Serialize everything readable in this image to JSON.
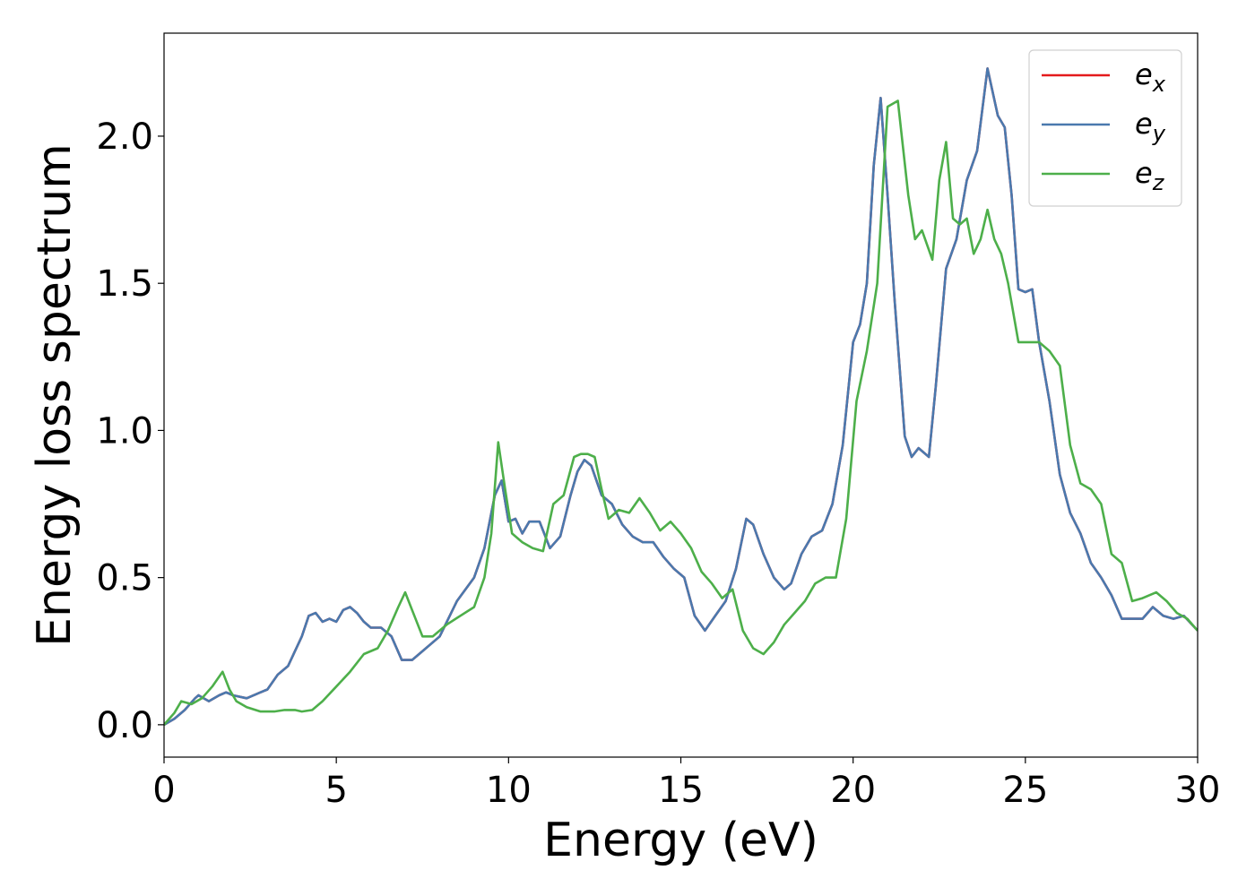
{
  "chart_data": {
    "type": "line",
    "title": "",
    "xlabel": "Energy (eV)",
    "ylabel": "Energy loss spectrum",
    "xlim": [
      0,
      30
    ],
    "ylim": [
      -0.11,
      2.35
    ],
    "xticks": [
      0,
      5,
      10,
      15,
      20,
      25,
      30
    ],
    "xtick_labels": [
      "0",
      "5",
      "10",
      "15",
      "20",
      "25",
      "30"
    ],
    "yticks": [
      0.0,
      0.5,
      1.0,
      1.5,
      2.0
    ],
    "ytick_labels": [
      "0.0",
      "0.5",
      "1.0",
      "1.5",
      "2.0"
    ],
    "grid": false,
    "legend_position": "top-right",
    "series": [
      {
        "name": "e_x",
        "label_base": "e",
        "label_sub": "x",
        "color": "#e41a1c",
        "x": [
          0,
          0.3,
          0.6,
          0.9,
          1.0,
          1.3,
          1.6,
          1.8,
          2.0,
          2.4,
          2.8,
          3.0,
          3.3,
          3.6,
          3.8,
          4.0,
          4.2,
          4.4,
          4.6,
          4.8,
          5.0,
          5.2,
          5.4,
          5.6,
          5.8,
          6.0,
          6.3,
          6.6,
          6.9,
          7.2,
          7.5,
          8.0,
          8.5,
          9.0,
          9.3,
          9.6,
          9.8,
          10.0,
          10.2,
          10.4,
          10.6,
          10.9,
          11.2,
          11.5,
          11.8,
          12.0,
          12.2,
          12.4,
          12.7,
          13.0,
          13.3,
          13.6,
          13.9,
          14.2,
          14.5,
          14.8,
          15.1,
          15.4,
          15.7,
          16.0,
          16.3,
          16.6,
          16.9,
          17.1,
          17.4,
          17.7,
          18.0,
          18.2,
          18.5,
          18.8,
          19.1,
          19.4,
          19.7,
          20.0,
          20.2,
          20.4,
          20.6,
          20.8,
          21.0,
          21.2,
          21.5,
          21.7,
          21.9,
          22.2,
          22.4,
          22.7,
          23.0,
          23.3,
          23.6,
          23.9,
          24.2,
          24.4,
          24.6,
          24.8,
          25.0,
          25.2,
          25.4,
          25.7,
          26.0,
          26.3,
          26.6,
          26.9,
          27.2,
          27.5,
          27.8,
          28.1,
          28.4,
          28.7,
          29.0,
          29.3,
          29.6,
          30.0
        ],
        "values": [
          0.0,
          0.02,
          0.05,
          0.09,
          0.1,
          0.08,
          0.1,
          0.11,
          0.1,
          0.09,
          0.11,
          0.12,
          0.17,
          0.2,
          0.25,
          0.3,
          0.37,
          0.38,
          0.35,
          0.36,
          0.35,
          0.39,
          0.4,
          0.38,
          0.35,
          0.33,
          0.33,
          0.3,
          0.22,
          0.22,
          0.25,
          0.3,
          0.42,
          0.5,
          0.6,
          0.78,
          0.83,
          0.69,
          0.7,
          0.65,
          0.69,
          0.69,
          0.6,
          0.64,
          0.78,
          0.86,
          0.9,
          0.88,
          0.78,
          0.75,
          0.68,
          0.64,
          0.62,
          0.62,
          0.57,
          0.53,
          0.5,
          0.37,
          0.32,
          0.37,
          0.42,
          0.53,
          0.7,
          0.68,
          0.58,
          0.5,
          0.46,
          0.48,
          0.58,
          0.64,
          0.66,
          0.75,
          0.95,
          1.3,
          1.36,
          1.5,
          1.9,
          2.13,
          1.8,
          1.45,
          0.98,
          0.91,
          0.94,
          0.91,
          1.15,
          1.55,
          1.65,
          1.85,
          1.95,
          2.23,
          2.07,
          2.03,
          1.8,
          1.48,
          1.47,
          1.48,
          1.3,
          1.1,
          0.85,
          0.72,
          0.65,
          0.55,
          0.5,
          0.44,
          0.36,
          0.36,
          0.36,
          0.4,
          0.37,
          0.36,
          0.37,
          0.32
        ]
      },
      {
        "name": "e_y",
        "label_base": "e",
        "label_sub": "y",
        "color": "#4a79ae",
        "x": [
          0,
          0.3,
          0.6,
          0.9,
          1.0,
          1.3,
          1.6,
          1.8,
          2.0,
          2.4,
          2.8,
          3.0,
          3.3,
          3.6,
          3.8,
          4.0,
          4.2,
          4.4,
          4.6,
          4.8,
          5.0,
          5.2,
          5.4,
          5.6,
          5.8,
          6.0,
          6.3,
          6.6,
          6.9,
          7.2,
          7.5,
          8.0,
          8.5,
          9.0,
          9.3,
          9.6,
          9.8,
          10.0,
          10.2,
          10.4,
          10.6,
          10.9,
          11.2,
          11.5,
          11.8,
          12.0,
          12.2,
          12.4,
          12.7,
          13.0,
          13.3,
          13.6,
          13.9,
          14.2,
          14.5,
          14.8,
          15.1,
          15.4,
          15.7,
          16.0,
          16.3,
          16.6,
          16.9,
          17.1,
          17.4,
          17.7,
          18.0,
          18.2,
          18.5,
          18.8,
          19.1,
          19.4,
          19.7,
          20.0,
          20.2,
          20.4,
          20.6,
          20.8,
          21.0,
          21.2,
          21.5,
          21.7,
          21.9,
          22.2,
          22.4,
          22.7,
          23.0,
          23.3,
          23.6,
          23.9,
          24.2,
          24.4,
          24.6,
          24.8,
          25.0,
          25.2,
          25.4,
          25.7,
          26.0,
          26.3,
          26.6,
          26.9,
          27.2,
          27.5,
          27.8,
          28.1,
          28.4,
          28.7,
          29.0,
          29.3,
          29.6,
          30.0
        ],
        "values": [
          0.0,
          0.02,
          0.05,
          0.09,
          0.1,
          0.08,
          0.1,
          0.11,
          0.1,
          0.09,
          0.11,
          0.12,
          0.17,
          0.2,
          0.25,
          0.3,
          0.37,
          0.38,
          0.35,
          0.36,
          0.35,
          0.39,
          0.4,
          0.38,
          0.35,
          0.33,
          0.33,
          0.3,
          0.22,
          0.22,
          0.25,
          0.3,
          0.42,
          0.5,
          0.6,
          0.78,
          0.83,
          0.69,
          0.7,
          0.65,
          0.69,
          0.69,
          0.6,
          0.64,
          0.78,
          0.86,
          0.9,
          0.88,
          0.78,
          0.75,
          0.68,
          0.64,
          0.62,
          0.62,
          0.57,
          0.53,
          0.5,
          0.37,
          0.32,
          0.37,
          0.42,
          0.53,
          0.7,
          0.68,
          0.58,
          0.5,
          0.46,
          0.48,
          0.58,
          0.64,
          0.66,
          0.75,
          0.95,
          1.3,
          1.36,
          1.5,
          1.9,
          2.13,
          1.8,
          1.45,
          0.98,
          0.91,
          0.94,
          0.91,
          1.15,
          1.55,
          1.65,
          1.85,
          1.95,
          2.23,
          2.07,
          2.03,
          1.8,
          1.48,
          1.47,
          1.48,
          1.3,
          1.1,
          0.85,
          0.72,
          0.65,
          0.55,
          0.5,
          0.44,
          0.36,
          0.36,
          0.36,
          0.4,
          0.37,
          0.36,
          0.37,
          0.32
        ]
      },
      {
        "name": "e_z",
        "label_base": "e",
        "label_sub": "z",
        "color": "#4daf4a",
        "x": [
          0,
          0.3,
          0.5,
          0.8,
          1.1,
          1.4,
          1.7,
          1.9,
          2.1,
          2.4,
          2.8,
          3.2,
          3.5,
          3.8,
          4.0,
          4.3,
          4.6,
          5.0,
          5.4,
          5.8,
          6.2,
          6.5,
          6.8,
          7.0,
          7.2,
          7.5,
          7.8,
          8.2,
          8.6,
          9.0,
          9.3,
          9.5,
          9.7,
          9.9,
          10.1,
          10.4,
          10.7,
          11.0,
          11.3,
          11.6,
          11.9,
          12.1,
          12.3,
          12.5,
          12.7,
          12.9,
          13.2,
          13.5,
          13.8,
          14.1,
          14.4,
          14.7,
          15.0,
          15.3,
          15.6,
          15.9,
          16.2,
          16.5,
          16.8,
          17.1,
          17.4,
          17.7,
          18.0,
          18.3,
          18.6,
          18.9,
          19.2,
          19.5,
          19.8,
          20.1,
          20.4,
          20.7,
          21.0,
          21.3,
          21.6,
          21.8,
          22.0,
          22.3,
          22.5,
          22.7,
          22.9,
          23.1,
          23.3,
          23.5,
          23.7,
          23.9,
          24.1,
          24.3,
          24.5,
          24.8,
          25.1,
          25.4,
          25.7,
          26.0,
          26.3,
          26.6,
          26.9,
          27.2,
          27.5,
          27.8,
          28.1,
          28.4,
          28.8,
          29.1,
          29.4,
          29.7,
          30.0
        ],
        "values": [
          0.0,
          0.04,
          0.08,
          0.07,
          0.09,
          0.13,
          0.18,
          0.12,
          0.08,
          0.06,
          0.045,
          0.045,
          0.05,
          0.05,
          0.045,
          0.05,
          0.08,
          0.13,
          0.18,
          0.24,
          0.26,
          0.32,
          0.4,
          0.45,
          0.39,
          0.3,
          0.3,
          0.34,
          0.37,
          0.4,
          0.5,
          0.65,
          0.96,
          0.8,
          0.65,
          0.62,
          0.6,
          0.59,
          0.75,
          0.78,
          0.91,
          0.92,
          0.92,
          0.91,
          0.8,
          0.7,
          0.73,
          0.72,
          0.77,
          0.72,
          0.66,
          0.69,
          0.65,
          0.6,
          0.52,
          0.48,
          0.43,
          0.46,
          0.32,
          0.26,
          0.24,
          0.28,
          0.34,
          0.38,
          0.42,
          0.48,
          0.5,
          0.5,
          0.7,
          1.1,
          1.27,
          1.5,
          2.1,
          2.12,
          1.8,
          1.65,
          1.68,
          1.58,
          1.85,
          1.98,
          1.72,
          1.7,
          1.72,
          1.6,
          1.65,
          1.75,
          1.65,
          1.6,
          1.5,
          1.3,
          1.3,
          1.3,
          1.27,
          1.22,
          0.95,
          0.82,
          0.8,
          0.75,
          0.58,
          0.55,
          0.42,
          0.43,
          0.45,
          0.42,
          0.38,
          0.36,
          0.32
        ]
      }
    ]
  }
}
